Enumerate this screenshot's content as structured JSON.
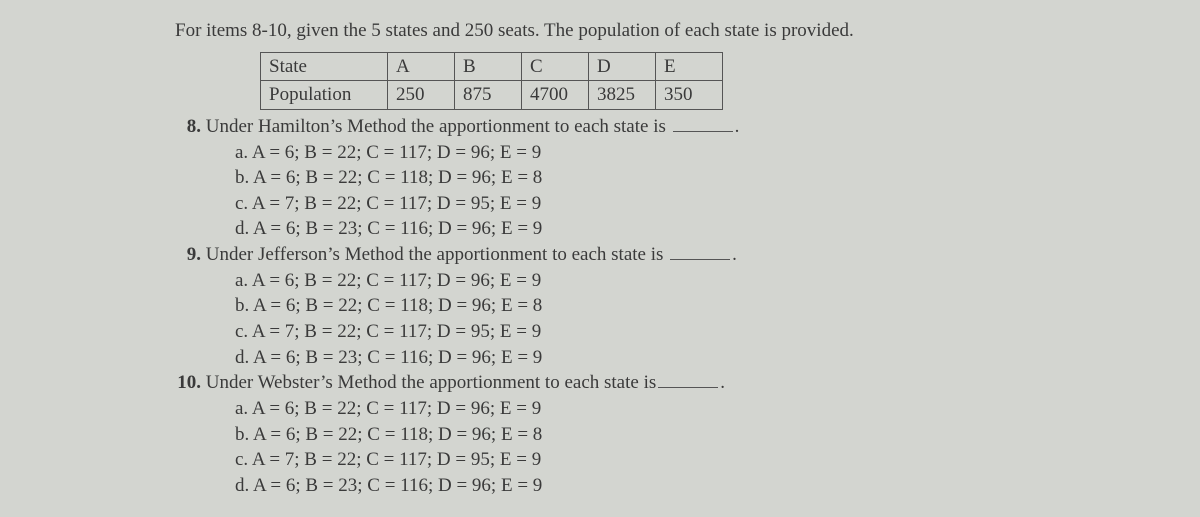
{
  "intro": "For items 8-10, given the 5 states and 250 seats. The population of each state is provided.",
  "table": {
    "row1_label": "State",
    "row2_label": "Population",
    "cols": [
      "A",
      "B",
      "C",
      "D",
      "E"
    ],
    "pops": [
      "250",
      "875",
      "4700",
      "3825",
      "350"
    ]
  },
  "questions": [
    {
      "num": "8.",
      "text_before": "Under Hamilton’s Method the apportionment to each state is ",
      "text_after": ".",
      "options": [
        {
          "letter": "a.",
          "text": "A = 6; B = 22; C = 117; D = 96; E = 9"
        },
        {
          "letter": "b.",
          "text": "A = 6; B = 22; C = 118; D = 96; E = 8"
        },
        {
          "letter": "c.",
          "text": "A = 7; B = 22; C = 117; D = 95; E = 9"
        },
        {
          "letter": "d.",
          "text": "A = 6; B = 23; C = 116; D = 96; E = 9"
        }
      ]
    },
    {
      "num": "9.",
      "text_before": "Under Jefferson’s Method the apportionment to each state is ",
      "text_after": ".",
      "options": [
        {
          "letter": "a.",
          "text": "A = 6; B = 22; C = 117; D = 96; E = 9"
        },
        {
          "letter": "b.",
          "text": "A = 6; B = 22; C = 118; D = 96; E = 8"
        },
        {
          "letter": "c.",
          "text": "A = 7; B = 22; C = 117; D = 95; E = 9"
        },
        {
          "letter": "d.",
          "text": "A = 6; B = 23; C = 116; D = 96; E = 9"
        }
      ]
    },
    {
      "num": "10.",
      "text_before": "Under Webster’s Method the apportionment to each state is",
      "text_after": ".",
      "options": [
        {
          "letter": "a.",
          "text": "A = 6; B = 22; C = 117; D = 96; E = 9"
        },
        {
          "letter": "b.",
          "text": "A = 6; B = 22; C = 118; D = 96; E = 8"
        },
        {
          "letter": "c.",
          "text": "A = 7; B = 22; C = 117; D = 95; E = 9"
        },
        {
          "letter": "d.",
          "text": "A = 6; B = 23; C = 116; D = 96; E = 9"
        }
      ]
    }
  ]
}
